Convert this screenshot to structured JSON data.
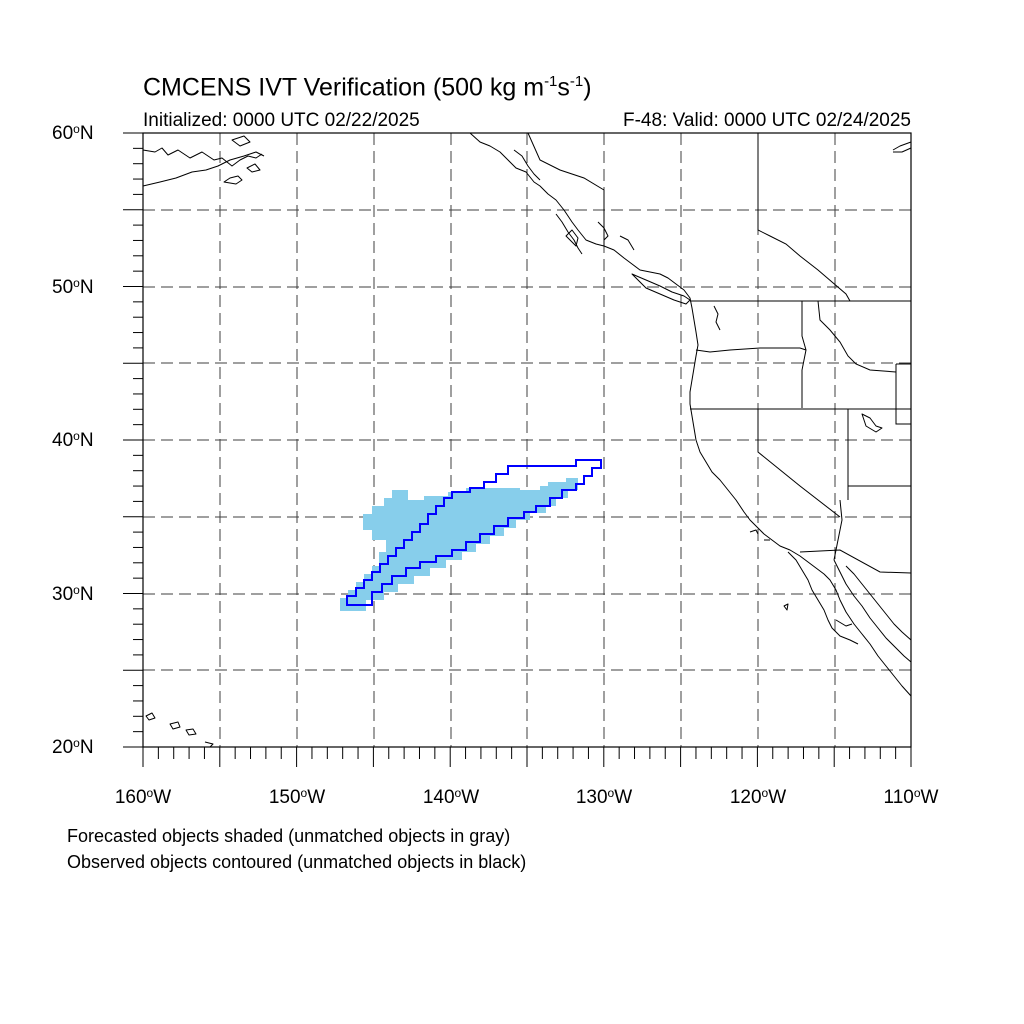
{
  "title": {
    "prefix": "CMCENS IVT Verification (500 kg m",
    "exp1": "-1",
    "mid": "s",
    "exp2": "-1",
    "suffix": ")"
  },
  "subtitle_left": "Initialized: 0000 UTC 02/22/2025",
  "subtitle_right": "F-48: Valid: 0000 UTC 02/24/2025",
  "lat_labels": [
    {
      "num": "60",
      "deg": "o",
      "hem": "N"
    },
    {
      "num": "50",
      "deg": "o",
      "hem": "N"
    },
    {
      "num": "40",
      "deg": "o",
      "hem": "N"
    },
    {
      "num": "30",
      "deg": "o",
      "hem": "N"
    },
    {
      "num": "20",
      "deg": "o",
      "hem": "N"
    }
  ],
  "lon_labels": [
    {
      "num": "160",
      "deg": "o",
      "hem": "W"
    },
    {
      "num": "150",
      "deg": "o",
      "hem": "W"
    },
    {
      "num": "140",
      "deg": "o",
      "hem": "W"
    },
    {
      "num": "130",
      "deg": "o",
      "hem": "W"
    },
    {
      "num": "120",
      "deg": "o",
      "hem": "W"
    },
    {
      "num": "110",
      "deg": "o",
      "hem": "W"
    }
  ],
  "notes": [
    "Forecasted objects shaded (unmatched objects in gray)",
    "Observed objects contoured (unmatched objects in black)"
  ],
  "colors": {
    "forecast_fill": "#87ceeb",
    "observed_contour": "#0000ff",
    "coastline": "#000000",
    "grid": "#000000"
  }
}
